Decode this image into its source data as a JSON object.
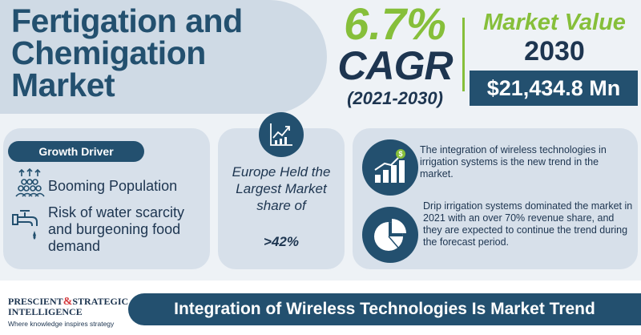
{
  "title": {
    "line1": "Fertigation and",
    "line2": "Chemigation",
    "line3": "Market"
  },
  "cagr": {
    "value": "6.7%",
    "label": "CAGR",
    "period": "(2021-2030)"
  },
  "market_value": {
    "label": "Market Value",
    "year": "2030",
    "amount": "$21,434.8 Mn"
  },
  "growth_driver": {
    "badge": "Growth Driver",
    "items": [
      {
        "text": "Booming Population",
        "icon": "population-icon"
      },
      {
        "text": "Risk of water scarcity and burgeoning food demand",
        "icon": "water-tap-icon"
      }
    ]
  },
  "region": {
    "icon": "chart-growth-icon",
    "text": "Europe Held the Largest Market share of",
    "share": ">42%"
  },
  "insights": [
    {
      "icon": "bar-growth-dollar-icon",
      "text": "The integration of wireless technologies in irrigation systems is the new trend in the market."
    },
    {
      "icon": "pie-chart-icon",
      "text": "Drip irrigation systems dominated the market in 2021 with an over 70% revenue share, and they are expected to continue the trend during the forecast period."
    }
  ],
  "logo": {
    "name_part1": "PRESCIENT",
    "amp": "&",
    "name_part2": "STRATEGIC",
    "name_part3": "INTELLIGENCE",
    "tagline": "Where knowledge inspires strategy"
  },
  "banner": {
    "text": "Integration of Wireless Technologies Is Market Trend"
  },
  "colors": {
    "navy": "#23506f",
    "green": "#86bf3a",
    "card": "#d7e0ea",
    "title_pill": "#cfdae5",
    "accent_red": "#d4373a"
  }
}
